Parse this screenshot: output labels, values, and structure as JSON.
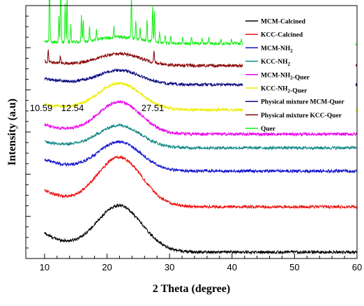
{
  "chart_data": {
    "type": "line",
    "title": "",
    "xlabel": "2 Theta (degree)",
    "ylabel": "Intensity (a.u)",
    "xlim": [
      7,
      60
    ],
    "xticks": [
      10,
      20,
      30,
      40,
      50,
      60
    ],
    "ylim": [
      0,
      12
    ],
    "y_tick_labels_shown": false,
    "grid": false,
    "legend_position": "top-right",
    "annotations": [
      {
        "text": "10.59",
        "x": 10.59
      },
      {
        "text": "12.54",
        "x": 12.54
      },
      {
        "text": "27.51",
        "x": 27.51
      }
    ],
    "series": [
      {
        "name": "MCM-Calcined",
        "color": "#000000",
        "baseline": 0.3,
        "edge": 0.9,
        "edge_decay": 4.5,
        "hump": 2.15,
        "hump_center": 22,
        "hump_width": 3.6,
        "noise": 0.07,
        "peaks": []
      },
      {
        "name": "KCC-Calcined",
        "color": "#ee1111",
        "baseline": 2.45,
        "edge": 0.8,
        "edge_decay": 4.5,
        "hump": 2.3,
        "hump_center": 22,
        "hump_width": 3.6,
        "noise": 0.07,
        "peaks": []
      },
      {
        "name": "MCM-NH₂",
        "color": "#1010cc",
        "baseline": 4.15,
        "edge": 0.55,
        "edge_decay": 4.5,
        "hump": 1.35,
        "hump_center": 22,
        "hump_width": 3.4,
        "noise": 0.07,
        "peaks": []
      },
      {
        "name": "KCC-NH₂",
        "color": "#118888",
        "baseline": 5.25,
        "edge": 0.3,
        "edge_decay": 4.5,
        "hump": 1.05,
        "hump_center": 22,
        "hump_width": 3.4,
        "noise": 0.07,
        "peaks": []
      },
      {
        "name": "MCM-NH₂-Quer",
        "color": "#ee00ee",
        "baseline": 5.9,
        "edge": 0.45,
        "edge_decay": 4.5,
        "hump": 1.5,
        "hump_center": 22,
        "hump_width": 3.4,
        "noise": 0.07,
        "peaks": []
      },
      {
        "name": "KCC-NH₂-Quer",
        "color": "#eeee00",
        "baseline": 7.05,
        "edge": 0.25,
        "edge_decay": 4.5,
        "hump": 1.25,
        "hump_center": 22,
        "hump_width": 3.4,
        "noise": 0.07,
        "peaks": []
      },
      {
        "name": "Physical mixture MCM-Quer",
        "color": "#0a0a80",
        "baseline": 8.25,
        "edge": 0.3,
        "edge_decay": 4.5,
        "hump": 0.65,
        "hump_center": 22,
        "hump_width": 3.4,
        "noise": 0.07,
        "peaks": []
      },
      {
        "name": "Physical mixture  KCC-Quer",
        "color": "#880000",
        "baseline": 9.15,
        "edge": 0.2,
        "edge_decay": 4.5,
        "hump": 0.55,
        "hump_center": 22,
        "hump_width": 3.4,
        "noise": 0.07,
        "peaks": [
          [
            10.59,
            0.6
          ],
          [
            12.54,
            0.35
          ],
          [
            27.51,
            0.6
          ]
        ]
      },
      {
        "name": "Quer",
        "color": "#11ee11",
        "baseline": 10.2,
        "edge": 0.1,
        "edge_decay": 4.5,
        "hump": 0.3,
        "hump_center": 22,
        "hump_width": 3.4,
        "noise": 0.07,
        "peaks": [
          [
            10.8,
            3.2
          ],
          [
            12.3,
            1.2
          ],
          [
            12.6,
            4.2
          ],
          [
            13.3,
            1.9
          ],
          [
            13.6,
            2.2
          ],
          [
            14.2,
            0.9
          ],
          [
            15.9,
            1.2
          ],
          [
            16.2,
            1.0
          ],
          [
            17.2,
            0.7
          ],
          [
            18.3,
            0.5
          ],
          [
            21.1,
            0.5
          ],
          [
            23.9,
            2.0
          ],
          [
            24.6,
            0.8
          ],
          [
            25.3,
            0.6
          ],
          [
            26.4,
            1.0
          ],
          [
            27.3,
            1.7
          ],
          [
            27.6,
            1.4
          ],
          [
            28.4,
            0.5
          ],
          [
            29.3,
            0.4
          ],
          [
            30.2,
            0.35
          ],
          [
            32.1,
            0.35
          ],
          [
            33.5,
            0.3
          ],
          [
            35.2,
            0.25
          ],
          [
            36.3,
            0.3
          ],
          [
            38.2,
            0.25
          ],
          [
            39.9,
            0.2
          ],
          [
            41.5,
            0.25
          ],
          [
            42.1,
            0.2
          ]
        ]
      }
    ]
  }
}
